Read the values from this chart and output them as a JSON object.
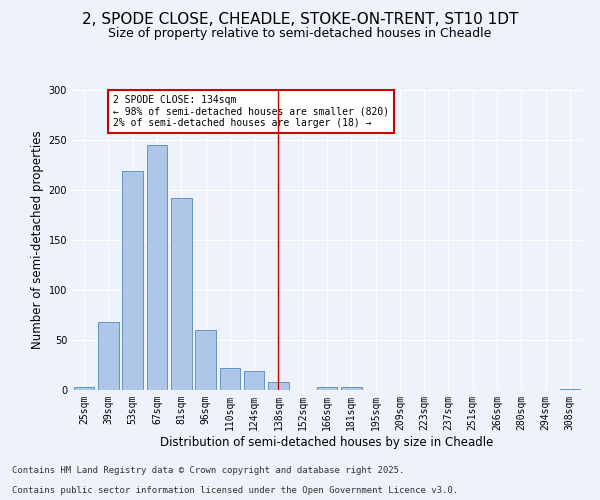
{
  "title": "2, SPODE CLOSE, CHEADLE, STOKE-ON-TRENT, ST10 1DT",
  "subtitle": "Size of property relative to semi-detached houses in Cheadle",
  "xlabel": "Distribution of semi-detached houses by size in Cheadle",
  "ylabel": "Number of semi-detached properties",
  "categories": [
    "25sqm",
    "39sqm",
    "53sqm",
    "67sqm",
    "81sqm",
    "96sqm",
    "110sqm",
    "124sqm",
    "138sqm",
    "152sqm",
    "166sqm",
    "181sqm",
    "195sqm",
    "209sqm",
    "223sqm",
    "237sqm",
    "251sqm",
    "266sqm",
    "280sqm",
    "294sqm",
    "308sqm"
  ],
  "values": [
    3,
    68,
    219,
    245,
    192,
    60,
    22,
    19,
    8,
    0,
    3,
    3,
    0,
    0,
    0,
    0,
    0,
    0,
    0,
    0,
    1
  ],
  "bar_color": "#aec6e8",
  "bar_edge_color": "#5588bb",
  "vline_x": 8.0,
  "vline_color": "#cc0000",
  "annotation_text": "2 SPODE CLOSE: 134sqm\n← 98% of semi-detached houses are smaller (820)\n2% of semi-detached houses are larger (18) →",
  "annotation_box_color": "#ffffff",
  "annotation_box_edge": "#cc0000",
  "ylim": [
    0,
    300
  ],
  "yticks": [
    0,
    50,
    100,
    150,
    200,
    250,
    300
  ],
  "footnote1": "Contains HM Land Registry data © Crown copyright and database right 2025.",
  "footnote2": "Contains public sector information licensed under the Open Government Licence v3.0.",
  "bg_color": "#eef2fb",
  "grid_color": "#ffffff",
  "title_fontsize": 11,
  "subtitle_fontsize": 9,
  "axis_label_fontsize": 8.5,
  "tick_fontsize": 7,
  "footnote_fontsize": 6.5
}
